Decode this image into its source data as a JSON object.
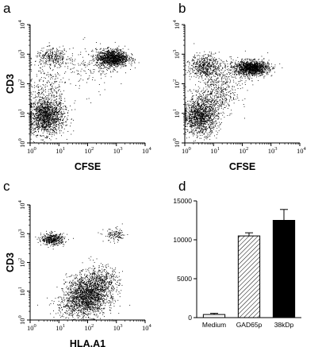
{
  "chart_data": [
    {
      "panel": "a",
      "type": "scatter",
      "xlabel": "CFSE",
      "ylabel": "CD3",
      "x_scale": "log",
      "y_scale": "log",
      "xlim": [
        1,
        10000
      ],
      "ylim": [
        1,
        10000
      ],
      "x_tick_labels": [
        "10",
        "10",
        "10",
        "10",
        "10"
      ],
      "x_tick_exponents": [
        "0",
        "1",
        "2",
        "3",
        "4"
      ],
      "y_tick_labels": [
        "10",
        "10",
        "10",
        "10",
        "10"
      ],
      "y_tick_exponents": [
        "0",
        "1",
        "2",
        "3",
        "4"
      ],
      "populations": [
        {
          "center": [
            3.5,
            8
          ],
          "spread": [
            0.32,
            0.3
          ],
          "count": 1500
        },
        {
          "center": [
            700,
            750
          ],
          "spread": [
            0.28,
            0.15
          ],
          "count": 1300
        },
        {
          "center": [
            6,
            800
          ],
          "spread": [
            0.3,
            0.15
          ],
          "count": 300
        },
        {
          "center": [
            4,
            60
          ],
          "spread": [
            0.35,
            0.45
          ],
          "count": 250
        },
        {
          "center": [
            60,
            300
          ],
          "spread": [
            0.6,
            0.4
          ],
          "count": 150
        }
      ]
    },
    {
      "panel": "b",
      "type": "scatter",
      "xlabel": "CFSE",
      "ylabel": "",
      "x_scale": "log",
      "y_scale": "log",
      "xlim": [
        1,
        10000
      ],
      "ylim": [
        1,
        10000
      ],
      "x_tick_labels": [
        "10",
        "10",
        "10",
        "10",
        "10"
      ],
      "x_tick_exponents": [
        "0",
        "1",
        "2",
        "3",
        "4"
      ],
      "y_tick_labels": [
        "10",
        "10",
        "10",
        "10",
        "10"
      ],
      "y_tick_exponents": [
        "0",
        "1",
        "2",
        "3",
        "4"
      ],
      "populations": [
        {
          "center": [
            3.5,
            8
          ],
          "spread": [
            0.3,
            0.3
          ],
          "count": 1300
        },
        {
          "center": [
            200,
            350
          ],
          "spread": [
            0.3,
            0.12
          ],
          "count": 1400
        },
        {
          "center": [
            5,
            400
          ],
          "spread": [
            0.25,
            0.2
          ],
          "count": 500
        },
        {
          "center": [
            12,
            40
          ],
          "spread": [
            0.35,
            0.35
          ],
          "count": 400
        },
        {
          "center": [
            20,
            200
          ],
          "spread": [
            0.5,
            0.3
          ],
          "count": 250
        }
      ]
    },
    {
      "panel": "c",
      "type": "scatter",
      "xlabel": "HLA.A1",
      "ylabel": "CD3",
      "x_scale": "log",
      "y_scale": "log",
      "xlim": [
        1,
        10000
      ],
      "ylim": [
        1,
        10000
      ],
      "x_tick_labels": [
        "10",
        "10",
        "10",
        "10",
        "10"
      ],
      "x_tick_exponents": [
        "0",
        "1",
        "2",
        "3",
        "4"
      ],
      "y_tick_labels": [
        "10",
        "10",
        "10",
        "10",
        "10"
      ],
      "y_tick_exponents": [
        "0",
        "1",
        "2",
        "3",
        "4"
      ],
      "populations": [
        {
          "center": [
            90,
            7
          ],
          "spread": [
            0.35,
            0.35
          ],
          "count": 1700
        },
        {
          "center": [
            300,
            20
          ],
          "spread": [
            0.3,
            0.3
          ],
          "count": 500
        },
        {
          "center": [
            6,
            650
          ],
          "spread": [
            0.2,
            0.1
          ],
          "count": 450
        },
        {
          "center": [
            900,
            900
          ],
          "spread": [
            0.2,
            0.12
          ],
          "count": 120
        },
        {
          "center": [
            30,
            3
          ],
          "spread": [
            0.4,
            0.2
          ],
          "count": 200
        }
      ]
    },
    {
      "panel": "d",
      "type": "bar",
      "categories": [
        "Medium",
        "GAD65p",
        "38kDp"
      ],
      "values": [
        400,
        10500,
        12500
      ],
      "errors": [
        150,
        400,
        1400
      ],
      "fills": [
        "white",
        "hatched",
        "black"
      ],
      "ylim": [
        0,
        15000
      ],
      "yticks": [
        "0",
        "5000",
        "10000",
        "15000"
      ],
      "xlabel": "",
      "ylabel": ""
    }
  ]
}
